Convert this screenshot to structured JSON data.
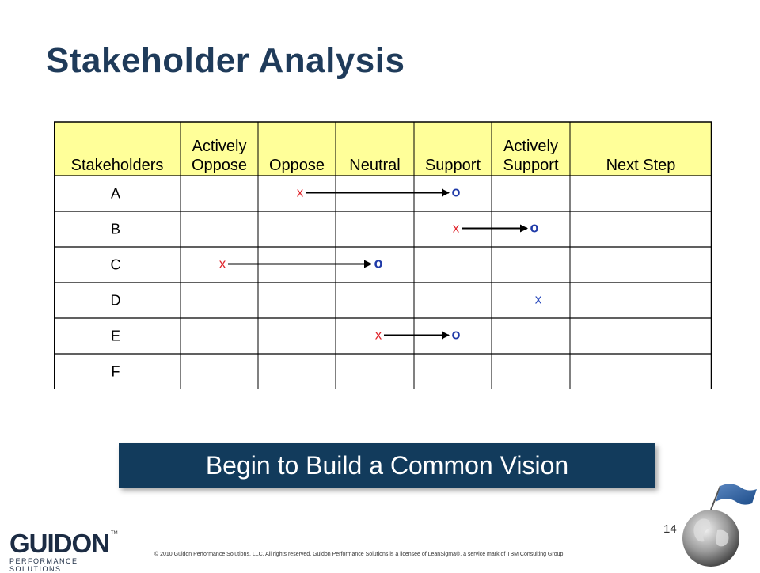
{
  "slide": {
    "title": "Stakeholder Analysis",
    "banner": "Begin to Build a Common Vision",
    "page_number": "14",
    "footer": "© 2010 Guidon Performance Solutions, LLC.  All rights reserved. Guidon Performance Solutions is a licensee of LeanSigma®, a service mark of TBM Consulting Group.",
    "logo_text": "GUIDON",
    "logo_tagline": "PERFORMANCE SOLUTIONS",
    "logo_tm": "TM"
  },
  "table": {
    "headers": [
      [
        "Stakeholders"
      ],
      [
        "Actively",
        "Oppose"
      ],
      [
        "Oppose"
      ],
      [
        "Neutral"
      ],
      [
        "Support"
      ],
      [
        "Actively",
        "Support"
      ],
      [
        "Next Step"
      ]
    ],
    "rows": [
      {
        "name": "A",
        "x_col": 2,
        "o_col": 4
      },
      {
        "name": "B",
        "x_col": 4,
        "o_col": 5
      },
      {
        "name": "C",
        "x_col": 1,
        "o_col": 3
      },
      {
        "name": "D",
        "x_col": 5,
        "o_col": null
      },
      {
        "name": "E",
        "x_col": 3,
        "o_col": 4
      },
      {
        "name": "F",
        "x_col": null,
        "o_col": null
      }
    ],
    "mark_x": "x",
    "mark_o": "o",
    "colors": {
      "header_bg": "#ffff99",
      "x_mark": "#e0242b",
      "x_mark_alt": "#2b4bbd",
      "o_mark": "#1f3aa8"
    }
  }
}
